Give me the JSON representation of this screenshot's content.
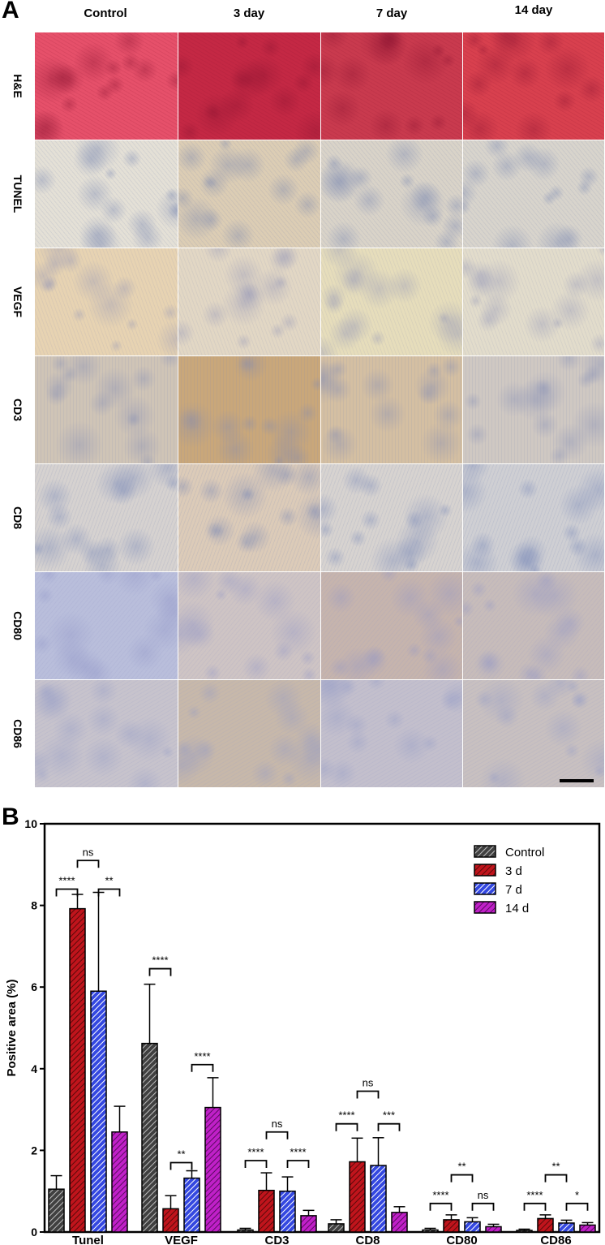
{
  "panel_a": {
    "letter": "A",
    "columns": [
      "Control",
      "3 day",
      "7 day",
      "14 day"
    ],
    "rows": [
      {
        "label": "H&E",
        "palette": [
          "#e6506a",
          "#c42844",
          "#c93a4e",
          "#d8404e"
        ],
        "dots": "#8a1230"
      },
      {
        "label": "TUNEL",
        "palette": [
          "#e4e0d6",
          "#dccdb4",
          "#d9d3c8",
          "#d8d4cc"
        ],
        "dots": "#6f7fae"
      },
      {
        "label": "VEGF",
        "palette": [
          "#e7d3b2",
          "#e2d7c4",
          "#e6ddbb",
          "#e2dccb"
        ],
        "dots": "#8c90b6"
      },
      {
        "label": "CD3",
        "palette": [
          "#cfc4b6",
          "#c9a77a",
          "#d4bfa2",
          "#cfc8c2"
        ],
        "dots": "#7d88b4"
      },
      {
        "label": "CD8",
        "palette": [
          "#d6d2d0",
          "#dccbb8",
          "#d7d3d0",
          "#cfcfd3"
        ],
        "dots": "#6d7fb4"
      },
      {
        "label": "CD80",
        "palette": [
          "#b9bedb",
          "#cec4c4",
          "#c6b4ad",
          "#c7bcba"
        ],
        "dots": "#8e93c6"
      },
      {
        "label": "CD86",
        "palette": [
          "#c7c3cc",
          "#c7b8aa",
          "#c3bfcc",
          "#c8c0c0"
        ],
        "dots": "#8e97c6"
      }
    ]
  },
  "panel_b": {
    "letter": "B"
  },
  "chart_data": {
    "type": "bar",
    "ylabel": "Positive area (%)",
    "xlabel": "",
    "ylim": [
      0,
      10
    ],
    "yticks": [
      "0",
      "2",
      "4",
      "6",
      "8",
      "10"
    ],
    "categories": [
      "Tunel",
      "VEGF",
      "CD3",
      "CD8",
      "CD80",
      "CD86"
    ],
    "legend_position": "top-right",
    "series": [
      {
        "name": "Control",
        "color": "#404040",
        "hatch": "#bfbfbf",
        "values": [
          1.05,
          4.62,
          0.05,
          0.2,
          0.05,
          0.04
        ],
        "errors": [
          0.33,
          1.45,
          0.04,
          0.1,
          0.04,
          0.03
        ]
      },
      {
        "name": "3 d",
        "color": "#c0141c",
        "hatch": "#5a0a0a",
        "values": [
          7.92,
          0.57,
          1.02,
          1.72,
          0.3,
          0.33
        ],
        "errors": [
          0.35,
          0.32,
          0.43,
          0.58,
          0.12,
          0.09
        ]
      },
      {
        "name": "7 d",
        "color": "#3448e0",
        "hatch": "#ffffff",
        "values": [
          5.9,
          1.32,
          1.0,
          1.63,
          0.25,
          0.22
        ],
        "errors": [
          2.42,
          0.18,
          0.35,
          0.68,
          0.1,
          0.07
        ]
      },
      {
        "name": "14 d",
        "color": "#c020c8",
        "hatch": "#5a0a60",
        "values": [
          2.45,
          3.05,
          0.4,
          0.48,
          0.13,
          0.17
        ],
        "errors": [
          0.63,
          0.73,
          0.13,
          0.14,
          0.06,
          0.06
        ]
      }
    ],
    "significance": [
      {
        "group": 0,
        "from": 0,
        "to": 1,
        "y": 8.4,
        "label": "****"
      },
      {
        "group": 0,
        "from": 1,
        "to": 2,
        "y": 9.1,
        "label": "ns"
      },
      {
        "group": 0,
        "from": 2,
        "to": 3,
        "y": 8.4,
        "label": "**"
      },
      {
        "group": 1,
        "from": 0,
        "to": 1,
        "y": 6.45,
        "label": "****"
      },
      {
        "group": 1,
        "from": 1,
        "to": 2,
        "y": 1.7,
        "label": "**"
      },
      {
        "group": 1,
        "from": 2,
        "to": 3,
        "y": 4.1,
        "label": "****"
      },
      {
        "group": 2,
        "from": 0,
        "to": 1,
        "y": 1.75,
        "label": "****"
      },
      {
        "group": 2,
        "from": 1,
        "to": 2,
        "y": 2.45,
        "label": "ns"
      },
      {
        "group": 2,
        "from": 2,
        "to": 3,
        "y": 1.75,
        "label": "****"
      },
      {
        "group": 3,
        "from": 0,
        "to": 1,
        "y": 2.65,
        "label": "****"
      },
      {
        "group": 3,
        "from": 1,
        "to": 2,
        "y": 3.45,
        "label": "ns"
      },
      {
        "group": 3,
        "from": 2,
        "to": 3,
        "y": 2.65,
        "label": "***"
      },
      {
        "group": 4,
        "from": 0,
        "to": 1,
        "y": 0.7,
        "label": "****"
      },
      {
        "group": 4,
        "from": 1,
        "to": 2,
        "y": 1.4,
        "label": "**"
      },
      {
        "group": 4,
        "from": 2,
        "to": 3,
        "y": 0.7,
        "label": "ns"
      },
      {
        "group": 5,
        "from": 0,
        "to": 1,
        "y": 0.7,
        "label": "****"
      },
      {
        "group": 5,
        "from": 1,
        "to": 2,
        "y": 1.4,
        "label": "**"
      },
      {
        "group": 5,
        "from": 2,
        "to": 3,
        "y": 0.7,
        "label": "*"
      }
    ]
  }
}
